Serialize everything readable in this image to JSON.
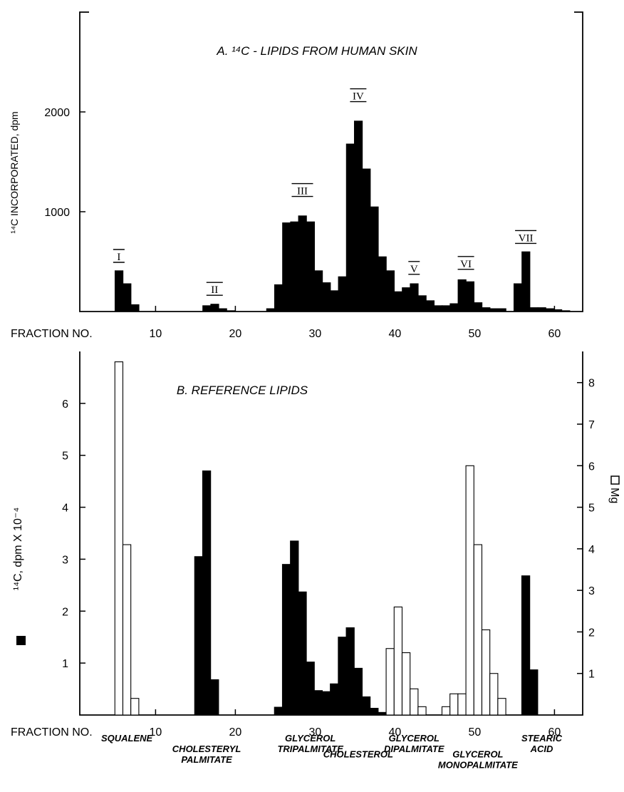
{
  "chart_data": [
    {
      "type": "bar",
      "title": "A. ¹⁴C - LIPIDS FROM HUMAN SKIN",
      "ylabel": "¹⁴C INCORPORATED, dpm",
      "xlabel": "FRACTION NO.",
      "xlim": [
        0,
        63
      ],
      "ylim": [
        0,
        3000
      ],
      "xticks": [
        "10",
        "20",
        "30",
        "40",
        "50",
        "60"
      ],
      "yticks": [
        "1000",
        "2000"
      ],
      "series": [
        {
          "fill": "#000000",
          "points": [
            [
              5,
              410
            ],
            [
              6,
              280
            ],
            [
              7,
              70
            ],
            [
              16,
              60
            ],
            [
              17,
              75
            ],
            [
              18,
              30
            ],
            [
              19,
              10
            ],
            [
              24,
              30
            ],
            [
              25,
              270
            ],
            [
              26,
              890
            ],
            [
              27,
              900
            ],
            [
              28,
              960
            ],
            [
              29,
              900
            ],
            [
              30,
              410
            ],
            [
              31,
              290
            ],
            [
              32,
              210
            ],
            [
              33,
              350
            ],
            [
              34,
              1680
            ],
            [
              35,
              1910
            ],
            [
              36,
              1430
            ],
            [
              37,
              1050
            ],
            [
              38,
              550
            ],
            [
              39,
              410
            ],
            [
              40,
              200
            ],
            [
              41,
              240
            ],
            [
              42,
              280
            ],
            [
              43,
              160
            ],
            [
              44,
              110
            ],
            [
              45,
              60
            ],
            [
              46,
              60
            ],
            [
              47,
              80
            ],
            [
              48,
              320
            ],
            [
              49,
              300
            ],
            [
              50,
              90
            ],
            [
              51,
              40
            ],
            [
              52,
              30
            ],
            [
              53,
              30
            ],
            [
              55,
              280
            ],
            [
              56,
              600
            ],
            [
              57,
              40
            ],
            [
              58,
              40
            ],
            [
              59,
              30
            ],
            [
              60,
              20
            ],
            [
              61,
              10
            ]
          ]
        }
      ],
      "annotations": [
        {
          "text": "I",
          "x": 5,
          "y": 500
        },
        {
          "text": "II",
          "x": 17,
          "y": 170
        },
        {
          "text": "III",
          "x": 28,
          "y": 1160
        },
        {
          "text": "IV",
          "x": 35,
          "y": 2110
        },
        {
          "text": "V",
          "x": 42,
          "y": 380
        },
        {
          "text": "VI",
          "x": 48.5,
          "y": 430
        },
        {
          "text": "VII",
          "x": 56,
          "y": 690
        }
      ]
    },
    {
      "type": "bar",
      "title": "B. REFERENCE LIPIDS",
      "ylabel": "¹⁴C, dpm X 10⁻⁴",
      "y2label": "Mg",
      "xlabel": "FRACTION NO.",
      "xlim": [
        0,
        63
      ],
      "ylim": [
        0,
        7
      ],
      "y2lim": [
        0,
        8.75
      ],
      "xticks": [
        "10",
        "20",
        "30",
        "40",
        "50",
        "60"
      ],
      "yticks": [
        "1",
        "2",
        "3",
        "4",
        "5",
        "6"
      ],
      "y2ticks": [
        "1",
        "2",
        "3",
        "4",
        "5",
        "6",
        "7",
        "8"
      ],
      "series": [
        {
          "name": "¹⁴C, dpm X 10⁻⁴",
          "fill": "#000000",
          "points": [
            [
              15,
              3.05
            ],
            [
              16,
              4.7
            ],
            [
              17,
              0.68
            ],
            [
              25,
              0.15
            ],
            [
              26,
              2.9
            ],
            [
              27,
              3.35
            ],
            [
              28,
              2.37
            ],
            [
              29,
              1.02
            ],
            [
              30,
              0.47
            ],
            [
              31,
              0.45
            ],
            [
              32,
              0.6
            ],
            [
              33,
              1.5
            ],
            [
              34,
              1.68
            ],
            [
              35,
              0.9
            ],
            [
              36,
              0.35
            ],
            [
              37,
              0.13
            ],
            [
              38,
              0.05
            ],
            [
              56,
              2.68
            ],
            [
              57,
              0.87
            ]
          ]
        },
        {
          "name": "Mg",
          "fill": "#ffffff",
          "points": [
            [
              5,
              8.5
            ],
            [
              6,
              4.1
            ],
            [
              7,
              0.4
            ],
            [
              39,
              1.6
            ],
            [
              40,
              2.6
            ],
            [
              41,
              1.5
            ],
            [
              42,
              0.63
            ],
            [
              43,
              0.2
            ],
            [
              46,
              0.2
            ],
            [
              47,
              0.51
            ],
            [
              48,
              0.51
            ],
            [
              49,
              6.0
            ],
            [
              50,
              4.1
            ],
            [
              51,
              2.05
            ],
            [
              52,
              1.0
            ],
            [
              53,
              0.4
            ]
          ]
        }
      ],
      "annotations": [
        {
          "text": "SQUALENE",
          "row": 1,
          "x": 6
        },
        {
          "text": "CHOLESTERYL",
          "row": 2,
          "x": 16
        },
        {
          "text": "PALMITATE",
          "row": 3,
          "x": 16
        },
        {
          "text": "GLYCEROL",
          "row": 1,
          "x": 29
        },
        {
          "text": "TRIPALMITATE",
          "row": 2,
          "x": 29
        },
        {
          "text": "CHOLESTEROL",
          "row": 2.5,
          "x": 35
        },
        {
          "text": "GLYCEROL",
          "row": 1,
          "x": 42
        },
        {
          "text": "DIPALMITATE",
          "row": 2,
          "x": 42
        },
        {
          "text": "GLYCEROL",
          "row": 2.5,
          "x": 50
        },
        {
          "text": "MONOPALMITATE",
          "row": 3.5,
          "x": 50
        },
        {
          "text": "STEARIC",
          "row": 1,
          "x": 58
        },
        {
          "text": "ACID",
          "row": 2,
          "x": 58
        }
      ]
    }
  ]
}
